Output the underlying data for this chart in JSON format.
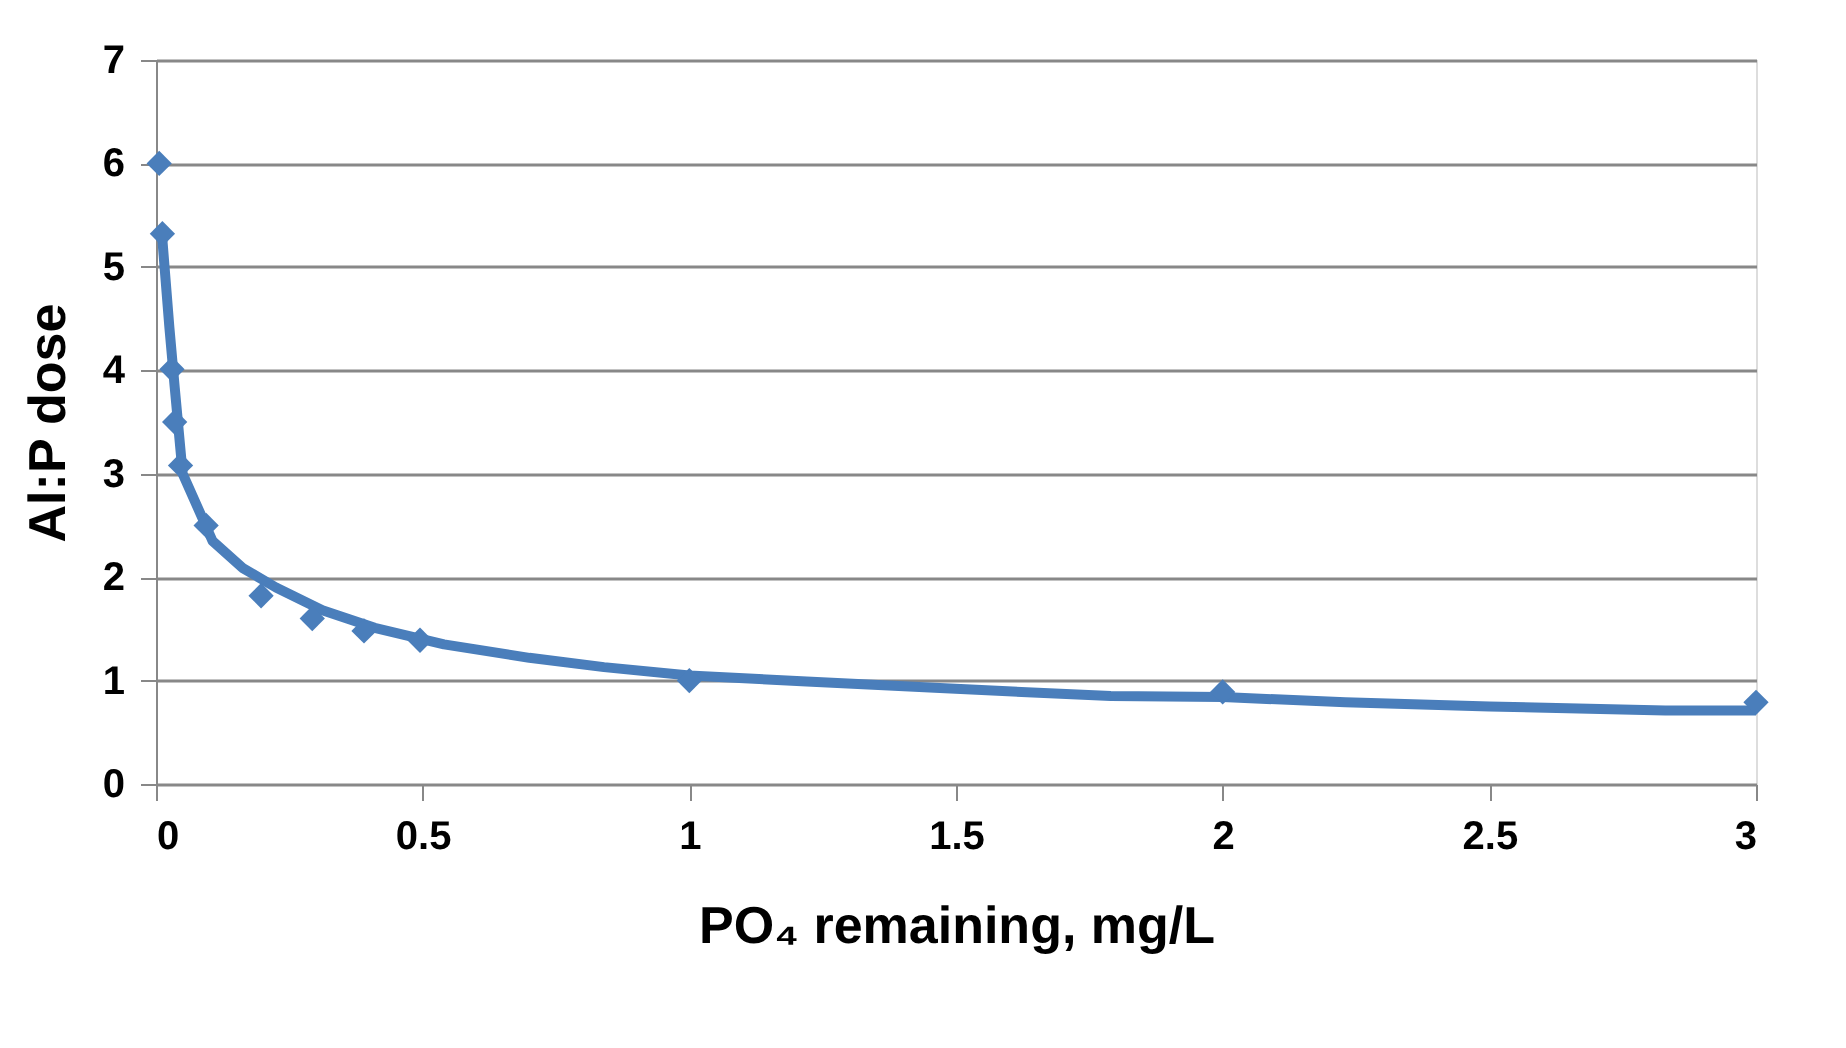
{
  "chart_data": {
    "type": "line",
    "xlabel": "PO₄ remaining, mg/L",
    "ylabel": "Al:P dose",
    "xlim": [
      0,
      3
    ],
    "xticks": [
      0,
      0.5,
      1,
      1.5,
      2,
      2.5,
      3
    ],
    "ylim": [
      0,
      7
    ],
    "yticks": [
      0,
      1,
      2,
      3,
      4,
      5,
      6,
      7
    ],
    "grid": "y",
    "series": [
      {
        "color": "#4a7ebb",
        "marker": "none",
        "line_style": "solid",
        "x": [
          0.012,
          0.025,
          0.035,
          0.05,
          0.106,
          0.162,
          0.225,
          0.312,
          0.41,
          0.54,
          0.7,
          0.84,
          1.0,
          1.22,
          1.46,
          1.79,
          2.0,
          2.23,
          2.5,
          2.83,
          3.0
        ],
        "values": [
          5.26,
          4.42,
          3.84,
          3.0,
          2.35,
          2.09,
          1.9,
          1.68,
          1.51,
          1.35,
          1.22,
          1.13,
          1.05,
          0.99,
          0.93,
          0.85,
          0.84,
          0.79,
          0.75,
          0.71,
          0.71
        ]
      },
      {
        "type": "scatter",
        "color": "#4a7ebb",
        "marker": "diamond",
        "x": [
          0.006,
          0.012,
          0.03,
          0.035,
          0.046,
          0.094,
          0.197,
          0.293,
          0.39,
          0.495,
          1.0,
          2.0,
          3.0
        ],
        "values": [
          6.0,
          5.32,
          4.01,
          3.5,
          3.08,
          2.5,
          1.82,
          1.6,
          1.48,
          1.39,
          1.0,
          0.89,
          0.79
        ]
      }
    ]
  }
}
